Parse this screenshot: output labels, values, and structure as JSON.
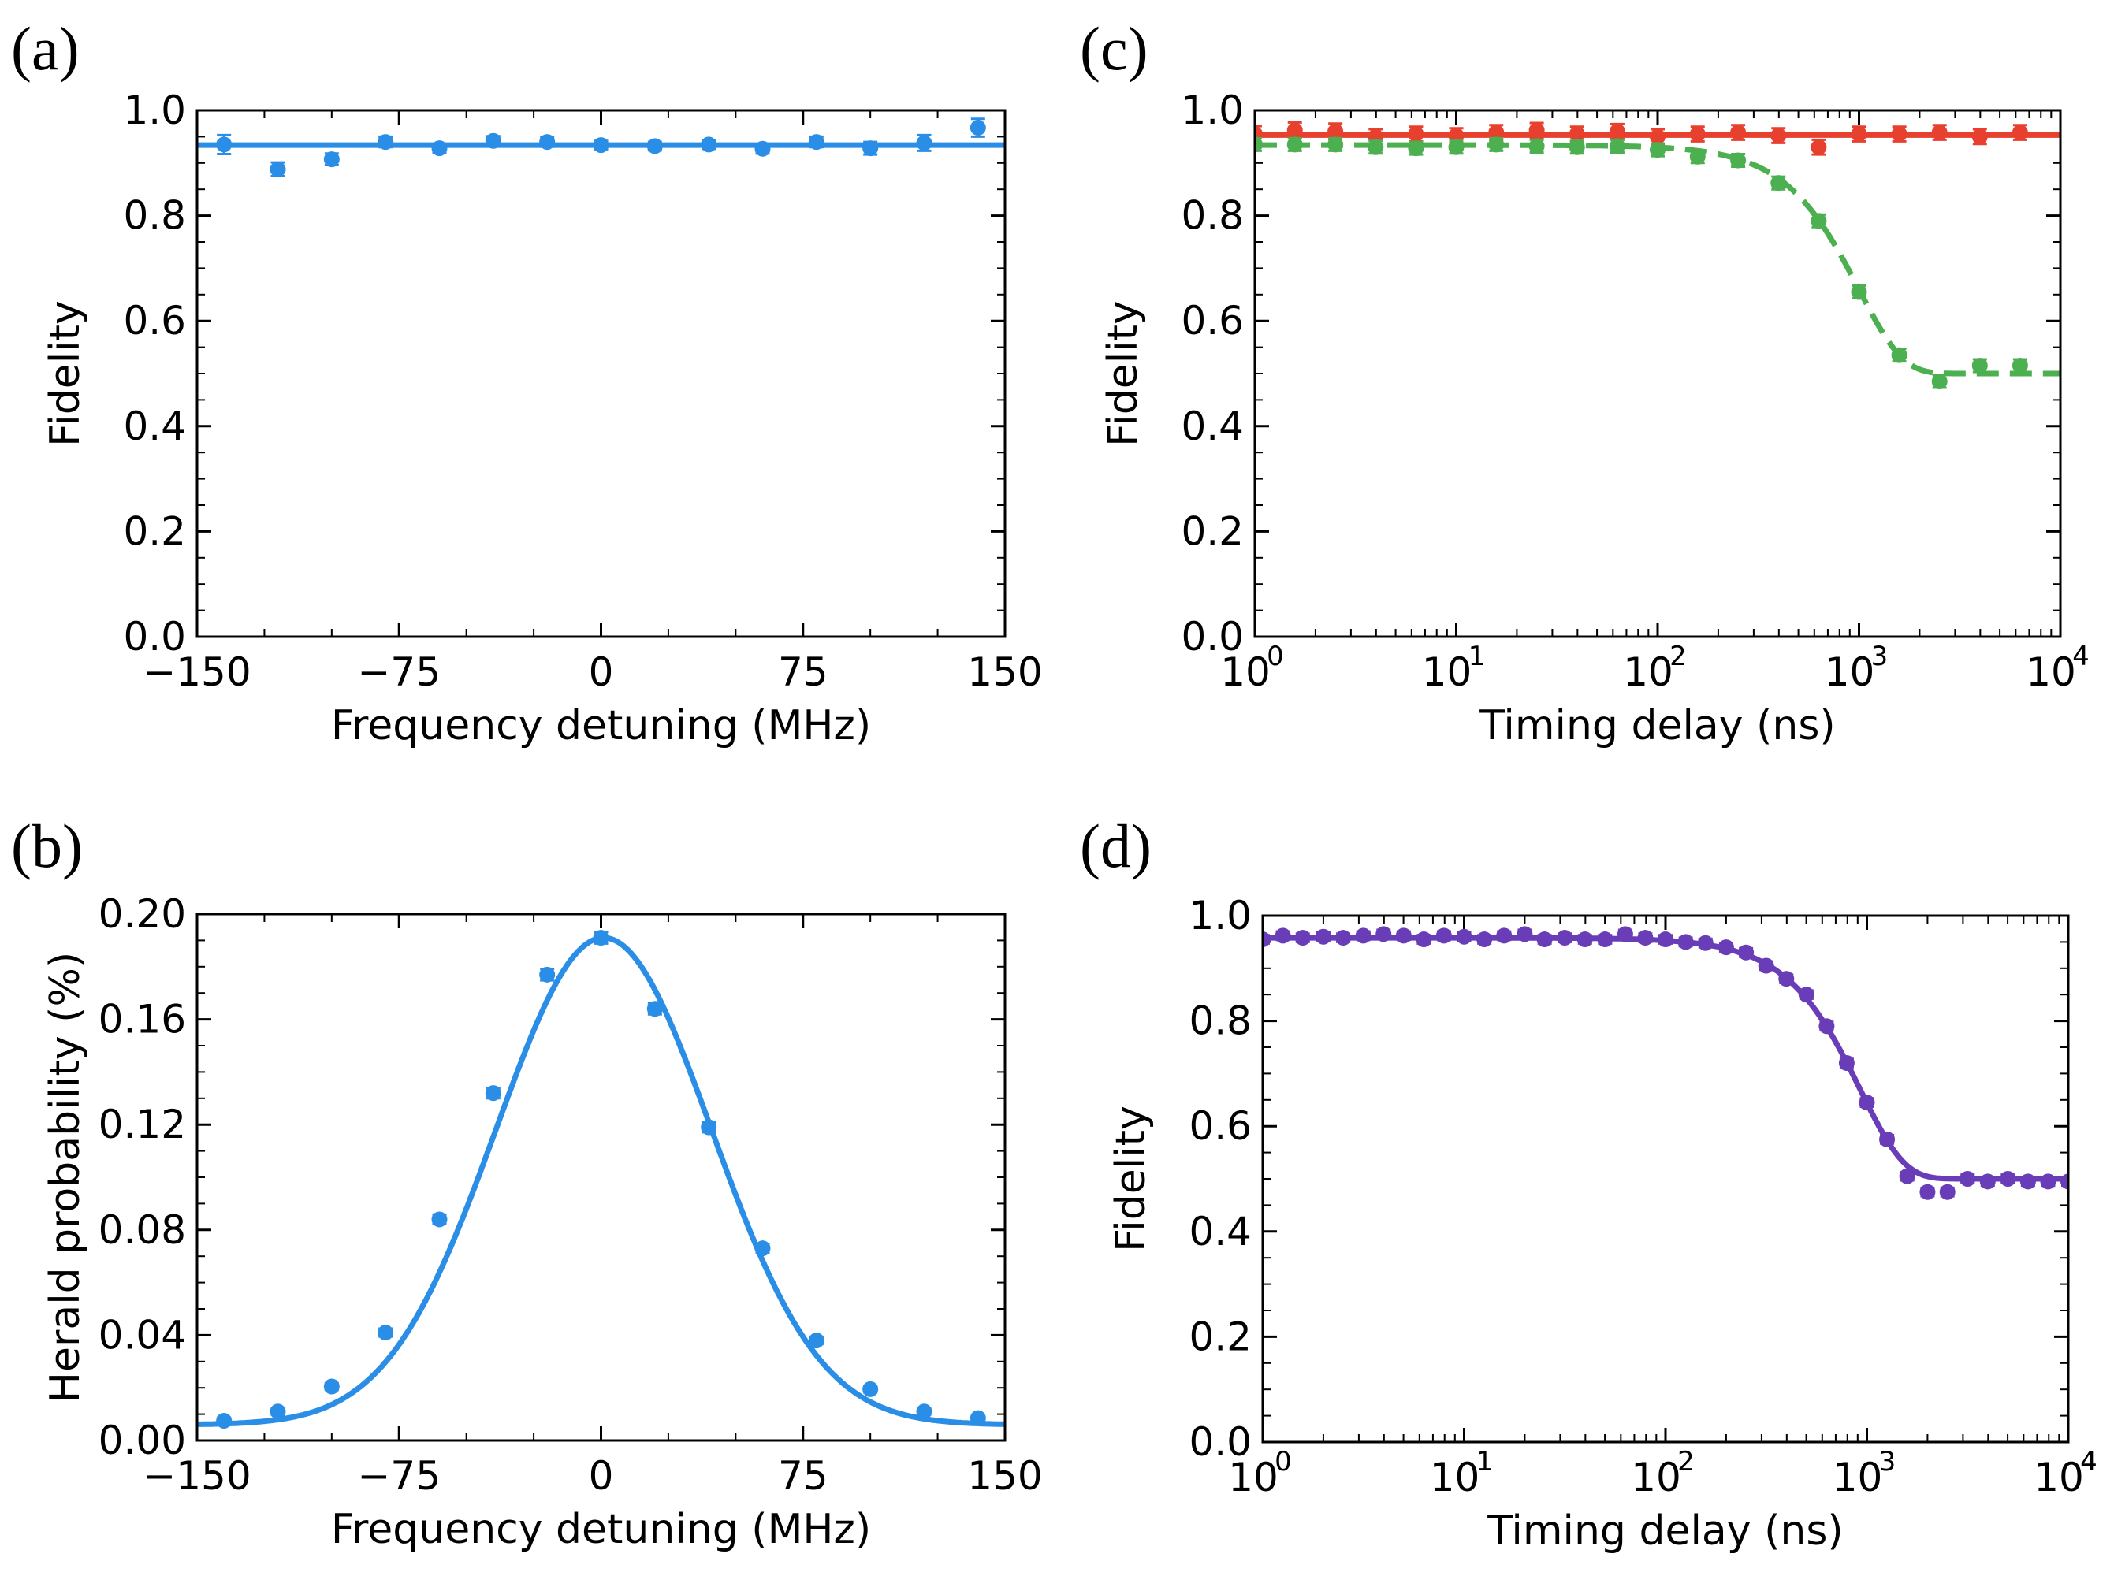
{
  "colors": {
    "blue": "#2b8ee6",
    "red": "#e8402f",
    "green": "#4caf50",
    "purple": "#6a3db8"
  },
  "chart_data": [
    {
      "id": "a",
      "type": "scatter",
      "panel_label": "(a)",
      "xlabel": "Frequency detuning (MHz)",
      "ylabel": "Fidelity",
      "xscale": "linear",
      "xlim": [
        -150,
        150
      ],
      "ylim": [
        0.0,
        1.0
      ],
      "xticks": [
        -150,
        -75,
        0,
        75,
        150
      ],
      "xticklabels": [
        "−150",
        "−75",
        "0",
        "75",
        "150"
      ],
      "yticks": [
        0.0,
        0.2,
        0.4,
        0.6,
        0.8,
        1.0
      ],
      "yticklabels": [
        "0.0",
        "0.2",
        "0.4",
        "0.6",
        "0.8",
        "1.0"
      ],
      "series": [
        {
          "name": "fidelity",
          "color": "blue",
          "x": [
            -140,
            -120,
            -100,
            -80,
            -60,
            -40,
            -20,
            0,
            20,
            40,
            60,
            80,
            100,
            120,
            140
          ],
          "y": [
            0.935,
            0.888,
            0.907,
            0.94,
            0.928,
            0.942,
            0.94,
            0.934,
            0.932,
            0.935,
            0.927,
            0.94,
            0.928,
            0.938,
            0.967
          ],
          "err": [
            0.018,
            0.013,
            0.011,
            0.01,
            0.008,
            0.009,
            0.009,
            0.008,
            0.008,
            0.008,
            0.009,
            0.01,
            0.012,
            0.015,
            0.017
          ],
          "fit": {
            "kind": "constant",
            "value": 0.934,
            "style": "solid"
          }
        }
      ]
    },
    {
      "id": "b",
      "type": "scatter",
      "panel_label": "(b)",
      "xlabel": "Frequency detuning (MHz)",
      "ylabel": "Herald probability (%)",
      "xscale": "linear",
      "xlim": [
        -150,
        150
      ],
      "ylim": [
        0.0,
        0.2
      ],
      "xticks": [
        -150,
        -75,
        0,
        75,
        150
      ],
      "xticklabels": [
        "−150",
        "−75",
        "0",
        "75",
        "150"
      ],
      "yticks": [
        0.0,
        0.04,
        0.08,
        0.12,
        0.16,
        0.2
      ],
      "yticklabels": [
        "0.00",
        "0.04",
        "0.08",
        "0.12",
        "0.16",
        "0.20"
      ],
      "series": [
        {
          "name": "herald",
          "color": "blue",
          "x": [
            -140,
            -120,
            -100,
            -80,
            -60,
            -40,
            -20,
            0,
            20,
            40,
            60,
            80,
            100,
            120,
            140
          ],
          "y": [
            0.0075,
            0.011,
            0.0205,
            0.041,
            0.084,
            0.132,
            0.177,
            0.191,
            0.164,
            0.119,
            0.073,
            0.038,
            0.0195,
            0.011,
            0.0085
          ],
          "err": [
            0.0012,
            0.0012,
            0.0013,
            0.0015,
            0.0018,
            0.002,
            0.0022,
            0.0022,
            0.0021,
            0.0019,
            0.0017,
            0.0014,
            0.0013,
            0.0012,
            0.0012
          ],
          "fit": {
            "kind": "gaussian",
            "amp": 0.185,
            "center": 1,
            "sigma": 40,
            "offset": 0.006,
            "style": "solid"
          }
        }
      ]
    },
    {
      "id": "c",
      "type": "scatter",
      "panel_label": "(c)",
      "xlabel": "Timing delay (ns)",
      "ylabel": "Fidelity",
      "xscale": "log",
      "xlim": [
        1,
        10000
      ],
      "ylim": [
        0.0,
        1.0
      ],
      "xticks": [
        1,
        10,
        100,
        1000,
        10000
      ],
      "xticklabels_base": [
        "10",
        "10",
        "10",
        "10",
        "10"
      ],
      "xticklabels_exp": [
        "0",
        "1",
        "2",
        "3",
        "4"
      ],
      "yticks": [
        0.0,
        0.2,
        0.4,
        0.6,
        0.8,
        1.0
      ],
      "yticklabels": [
        "0.0",
        "0.2",
        "0.4",
        "0.6",
        "0.8",
        "1.0"
      ],
      "series": [
        {
          "name": "red",
          "color": "red",
          "x": [
            1,
            1.58,
            2.51,
            3.98,
            6.31,
            10,
            15.8,
            25.1,
            39.8,
            63.1,
            100,
            158,
            251,
            398,
            631,
            1000,
            1585,
            2512,
            3981,
            6310
          ],
          "y": [
            0.955,
            0.962,
            0.96,
            0.95,
            0.955,
            0.952,
            0.958,
            0.962,
            0.955,
            0.96,
            0.95,
            0.955,
            0.958,
            0.952,
            0.93,
            0.955,
            0.955,
            0.958,
            0.95,
            0.958
          ],
          "err": [
            0.015,
            0.015,
            0.015,
            0.014,
            0.014,
            0.014,
            0.014,
            0.014,
            0.014,
            0.014,
            0.014,
            0.014,
            0.014,
            0.014,
            0.014,
            0.014,
            0.014,
            0.014,
            0.014,
            0.014
          ],
          "fit": {
            "kind": "constant",
            "value": 0.953,
            "style": "solid"
          }
        },
        {
          "name": "green",
          "color": "green",
          "x": [
            1,
            1.58,
            2.51,
            3.98,
            6.31,
            10,
            15.8,
            25.1,
            39.8,
            63.1,
            100,
            158,
            251,
            398,
            631,
            1000,
            1585,
            2512,
            3981,
            6310
          ],
          "y": [
            0.935,
            0.935,
            0.935,
            0.93,
            0.928,
            0.93,
            0.935,
            0.932,
            0.93,
            0.932,
            0.925,
            0.912,
            0.905,
            0.862,
            0.79,
            0.655,
            0.535,
            0.485,
            0.515,
            0.515
          ],
          "err": [
            0.012,
            0.012,
            0.012,
            0.012,
            0.012,
            0.012,
            0.012,
            0.012,
            0.012,
            0.012,
            0.012,
            0.012,
            0.012,
            0.012,
            0.012,
            0.012,
            0.012,
            0.012,
            0.012,
            0.012
          ],
          "fit": {
            "kind": "gaussian-decay",
            "high": 0.934,
            "low": 0.5,
            "tau": 1000,
            "style": "dashed"
          }
        }
      ]
    },
    {
      "id": "d",
      "type": "scatter",
      "panel_label": "(d)",
      "xlabel": "Timing delay (ns)",
      "ylabel": "Fidelity",
      "xscale": "log",
      "xlim": [
        1,
        10000
      ],
      "ylim": [
        0.0,
        1.0
      ],
      "xticks": [
        1,
        10,
        100,
        1000,
        10000
      ],
      "xticklabels_base": [
        "10",
        "10",
        "10",
        "10",
        "10"
      ],
      "xticklabels_exp": [
        "0",
        "1",
        "2",
        "3",
        "4"
      ],
      "yticks": [
        0.0,
        0.2,
        0.4,
        0.6,
        0.8,
        1.0
      ],
      "yticklabels": [
        "0.0",
        "0.2",
        "0.4",
        "0.6",
        "0.8",
        "1.0"
      ],
      "series": [
        {
          "name": "purple",
          "color": "purple",
          "x": [
            1,
            1.26,
            1.58,
            2.0,
            2.51,
            3.16,
            3.98,
            5.01,
            6.31,
            7.94,
            10,
            12.6,
            15.8,
            20.0,
            25.1,
            31.6,
            39.8,
            50.1,
            63.1,
            79.4,
            100,
            126,
            158,
            200,
            251,
            316,
            398,
            501,
            631,
            794,
            1000,
            1259,
            1585,
            2000,
            2512,
            3162,
            3981,
            5012,
            6310,
            7943,
            10000
          ],
          "y": [
            0.955,
            0.962,
            0.958,
            0.96,
            0.958,
            0.962,
            0.965,
            0.962,
            0.955,
            0.962,
            0.96,
            0.955,
            0.962,
            0.965,
            0.955,
            0.958,
            0.955,
            0.955,
            0.965,
            0.958,
            0.955,
            0.95,
            0.948,
            0.94,
            0.93,
            0.905,
            0.88,
            0.85,
            0.79,
            0.72,
            0.645,
            0.575,
            0.505,
            0.475,
            0.475,
            0.5,
            0.495,
            0.5,
            0.495,
            0.495,
            0.495
          ],
          "err": [
            0.008,
            0.008,
            0.008,
            0.008,
            0.008,
            0.008,
            0.008,
            0.008,
            0.008,
            0.008,
            0.008,
            0.008,
            0.008,
            0.008,
            0.008,
            0.008,
            0.008,
            0.008,
            0.008,
            0.008,
            0.008,
            0.008,
            0.008,
            0.008,
            0.008,
            0.008,
            0.008,
            0.008,
            0.008,
            0.008,
            0.008,
            0.008,
            0.008,
            0.008,
            0.008,
            0.008,
            0.008,
            0.008,
            0.008,
            0.008,
            0.008
          ],
          "fit": {
            "kind": "gaussian-decay",
            "high": 0.958,
            "low": 0.5,
            "tau": 930,
            "style": "solid"
          }
        }
      ]
    }
  ]
}
